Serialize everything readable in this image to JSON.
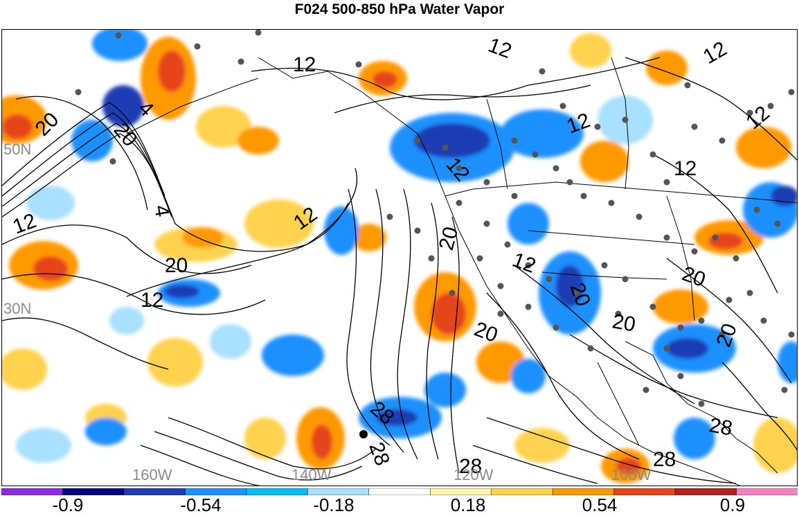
{
  "title": "F024 500-850 hPa Water Vapor",
  "map": {
    "lat_labels": [
      "50N",
      "30N"
    ],
    "lon_labels": [
      "160W",
      "140W",
      "120W",
      "100W"
    ],
    "contour_labels": [
      "12",
      "12",
      "12",
      "12",
      "12",
      "12",
      "12",
      "12",
      "12",
      "12",
      "12",
      "4",
      "4",
      "20",
      "20",
      "20",
      "20",
      "20",
      "20",
      "20",
      "20",
      "20",
      "28",
      "28",
      "28",
      "28",
      "28"
    ]
  },
  "colorbar": {
    "labels": [
      "-0.9",
      "-0.54",
      "-0.18",
      "0.18",
      "0.54",
      "0.9"
    ],
    "colors": [
      "#8a2be2",
      "#000080",
      "#1e3cb4",
      "#1e90ff",
      "#00bfff",
      "#a8e0ff",
      "#ffffff",
      "#fff4a8",
      "#ffd24d",
      "#ff9900",
      "#e6451a",
      "#b22222",
      "#ff80c0"
    ]
  },
  "colors": {
    "map_border": "#000000",
    "contour": "#000000",
    "station_dot": "#555555",
    "grid_label": "#8a8a8a"
  }
}
